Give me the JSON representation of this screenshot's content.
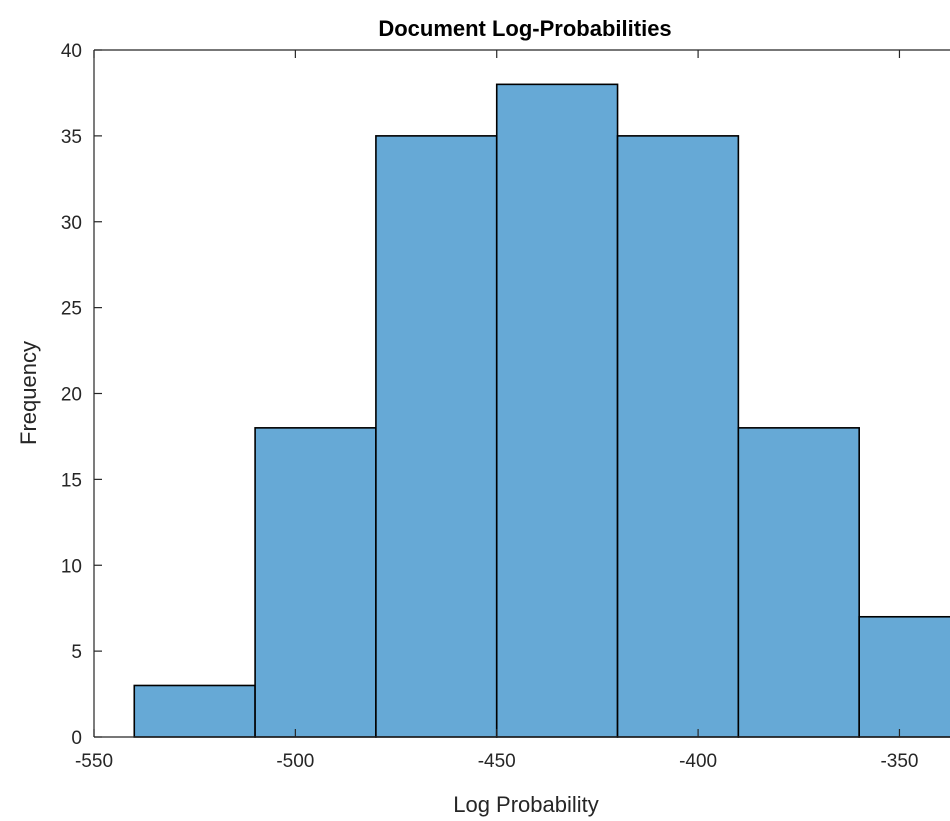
{
  "chart_data": {
    "type": "bar",
    "title": "Document Log-Probabilities",
    "xlabel": "Log Probability",
    "ylabel": "Frequency",
    "xlim": [
      -550,
      -330
    ],
    "ylim": [
      0,
      40
    ],
    "xticks": [
      -550,
      -500,
      -450,
      -400,
      -350
    ],
    "xtick_labels": [
      "-550",
      "-500",
      "-450",
      "-400",
      "-350"
    ],
    "yticks": [
      0,
      5,
      10,
      15,
      20,
      25,
      30,
      35,
      40
    ],
    "ytick_labels": [
      "0",
      "5",
      "10",
      "15",
      "20",
      "25",
      "30",
      "35",
      "40"
    ],
    "bin_edges": [
      -540,
      -510,
      -480,
      -450,
      -420,
      -390,
      -360,
      -330
    ],
    "values": [
      3,
      18,
      35,
      38,
      35,
      18,
      7
    ],
    "bar_color": "#66a9d6",
    "edge_color": "#000000",
    "grid": false,
    "box": true
  }
}
